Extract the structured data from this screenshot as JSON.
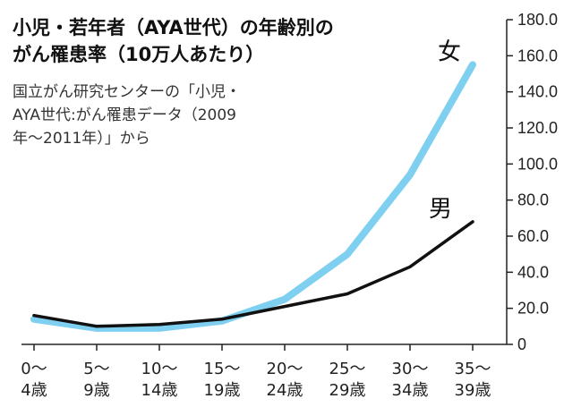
{
  "title_lines": [
    "小児・若年者（AYA世代）の年齢別の",
    "がん罹患率（10万人あたり）"
  ],
  "source_lines": [
    "国立がん研究センターの「小児・",
    "AYA世代:がん罹患データ（2009",
    "年〜2011年）」から"
  ],
  "chart_data": {
    "type": "line",
    "categories": [
      [
        "0〜",
        "4歳"
      ],
      [
        "5〜",
        "9歳"
      ],
      [
        "10〜",
        "14歳"
      ],
      [
        "15〜",
        "19歳"
      ],
      [
        "20〜",
        "24歳"
      ],
      [
        "25〜",
        "29歳"
      ],
      [
        "30〜",
        "34歳"
      ],
      [
        "35〜",
        "39歳"
      ]
    ],
    "series": [
      {
        "name": "女",
        "values": [
          14,
          9,
          9,
          13,
          25,
          50,
          94,
          155
        ],
        "color": "#7fd0f0"
      },
      {
        "name": "男",
        "values": [
          16,
          10,
          11,
          14,
          21,
          28,
          43,
          68
        ],
        "color": "#111111"
      }
    ],
    "yticks": [
      "180.0",
      "160.0",
      "140.0",
      "120.0",
      "100.0",
      "80.0",
      "60.0",
      "40.0",
      "20.0",
      "0"
    ],
    "ylim": [
      0,
      180
    ],
    "ytick_step": 20,
    "grid": false,
    "y_axis_side": "right"
  }
}
